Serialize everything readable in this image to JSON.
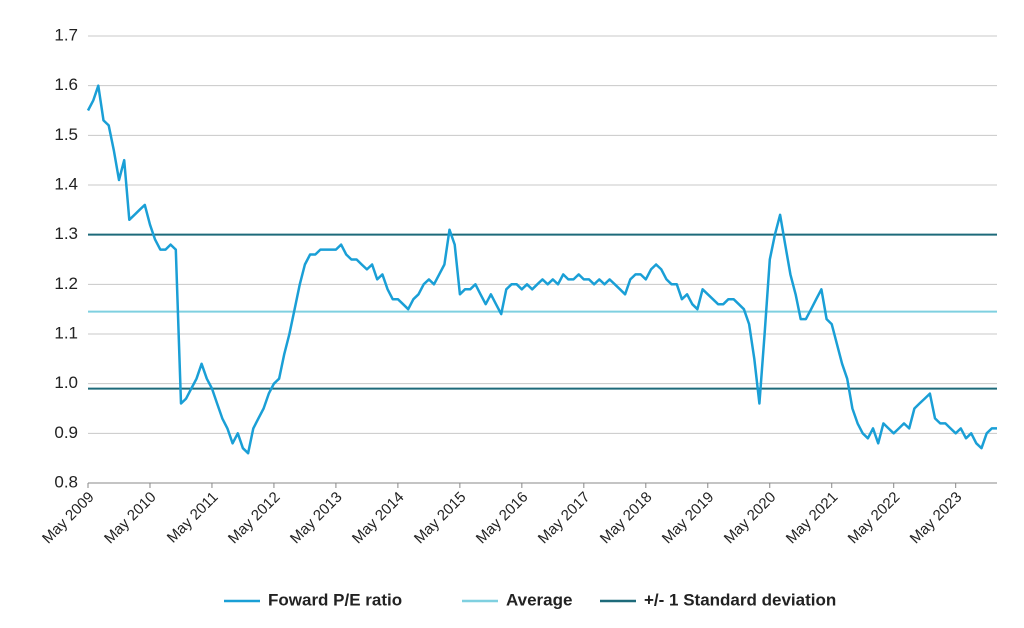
{
  "chart_data": {
    "type": "line",
    "x": [
      "2009-05",
      "2009-06",
      "2009-07",
      "2009-08",
      "2009-09",
      "2009-10",
      "2009-11",
      "2009-12",
      "2010-01",
      "2010-02",
      "2010-03",
      "2010-04",
      "2010-05",
      "2010-06",
      "2010-07",
      "2010-08",
      "2010-09",
      "2010-10",
      "2010-11",
      "2010-12",
      "2011-01",
      "2011-02",
      "2011-03",
      "2011-04",
      "2011-05",
      "2011-06",
      "2011-07",
      "2011-08",
      "2011-09",
      "2011-10",
      "2011-11",
      "2011-12",
      "2012-01",
      "2012-02",
      "2012-03",
      "2012-04",
      "2012-05",
      "2012-06",
      "2012-07",
      "2012-08",
      "2012-09",
      "2012-10",
      "2012-11",
      "2012-12",
      "2013-01",
      "2013-02",
      "2013-03",
      "2013-04",
      "2013-05",
      "2013-06",
      "2013-07",
      "2013-08",
      "2013-09",
      "2013-10",
      "2013-11",
      "2013-12",
      "2014-01",
      "2014-02",
      "2014-03",
      "2014-04",
      "2014-05",
      "2014-06",
      "2014-07",
      "2014-08",
      "2014-09",
      "2014-10",
      "2014-11",
      "2014-12",
      "2015-01",
      "2015-02",
      "2015-03",
      "2015-04",
      "2015-05",
      "2015-06",
      "2015-07",
      "2015-08",
      "2015-09",
      "2015-10",
      "2015-11",
      "2015-12",
      "2016-01",
      "2016-02",
      "2016-03",
      "2016-04",
      "2016-05",
      "2016-06",
      "2016-07",
      "2016-08",
      "2016-09",
      "2016-10",
      "2016-11",
      "2016-12",
      "2017-01",
      "2017-02",
      "2017-03",
      "2017-04",
      "2017-05",
      "2017-06",
      "2017-07",
      "2017-08",
      "2017-09",
      "2017-10",
      "2017-11",
      "2017-12",
      "2018-01",
      "2018-02",
      "2018-03",
      "2018-04",
      "2018-05",
      "2018-06",
      "2018-07",
      "2018-08",
      "2018-09",
      "2018-10",
      "2018-11",
      "2018-12",
      "2019-01",
      "2019-02",
      "2019-03",
      "2019-04",
      "2019-05",
      "2019-06",
      "2019-07",
      "2019-08",
      "2019-09",
      "2019-10",
      "2019-11",
      "2019-12",
      "2020-01",
      "2020-02",
      "2020-03",
      "2020-04",
      "2020-05",
      "2020-06",
      "2020-07",
      "2020-08",
      "2020-09",
      "2020-10",
      "2020-11",
      "2020-12",
      "2021-01",
      "2021-02",
      "2021-03",
      "2021-04",
      "2021-05",
      "2021-06",
      "2021-07",
      "2021-08",
      "2021-09",
      "2021-10",
      "2021-11",
      "2021-12",
      "2022-01",
      "2022-02",
      "2022-03",
      "2022-04",
      "2022-05",
      "2022-06",
      "2022-07",
      "2022-08",
      "2022-09",
      "2022-10",
      "2022-11",
      "2022-12",
      "2023-01",
      "2023-02",
      "2023-03",
      "2023-04",
      "2023-05",
      "2023-06",
      "2023-07",
      "2023-08",
      "2023-09",
      "2023-10",
      "2023-11",
      "2023-12",
      "2024-01"
    ],
    "series": [
      {
        "name": "Foward P/E ratio",
        "color": "#1a9fd6",
        "values": [
          1.55,
          1.57,
          1.6,
          1.53,
          1.52,
          1.47,
          1.41,
          1.45,
          1.33,
          1.34,
          1.35,
          1.36,
          1.32,
          1.29,
          1.27,
          1.27,
          1.28,
          1.27,
          0.96,
          0.97,
          0.99,
          1.01,
          1.04,
          1.01,
          0.99,
          0.96,
          0.93,
          0.91,
          0.88,
          0.9,
          0.87,
          0.86,
          0.91,
          0.93,
          0.95,
          0.98,
          1.0,
          1.01,
          1.06,
          1.1,
          1.15,
          1.2,
          1.24,
          1.26,
          1.26,
          1.27,
          1.27,
          1.27,
          1.27,
          1.28,
          1.26,
          1.25,
          1.25,
          1.24,
          1.23,
          1.24,
          1.21,
          1.22,
          1.19,
          1.17,
          1.17,
          1.16,
          1.15,
          1.17,
          1.18,
          1.2,
          1.21,
          1.2,
          1.22,
          1.24,
          1.31,
          1.28,
          1.18,
          1.19,
          1.19,
          1.2,
          1.18,
          1.16,
          1.18,
          1.16,
          1.14,
          1.19,
          1.2,
          1.2,
          1.19,
          1.2,
          1.19,
          1.2,
          1.21,
          1.2,
          1.21,
          1.2,
          1.22,
          1.21,
          1.21,
          1.22,
          1.21,
          1.21,
          1.2,
          1.21,
          1.2,
          1.21,
          1.2,
          1.19,
          1.18,
          1.21,
          1.22,
          1.22,
          1.21,
          1.23,
          1.24,
          1.23,
          1.21,
          1.2,
          1.2,
          1.17,
          1.18,
          1.16,
          1.15,
          1.19,
          1.18,
          1.17,
          1.16,
          1.16,
          1.17,
          1.17,
          1.16,
          1.15,
          1.12,
          1.05,
          0.96,
          1.1,
          1.25,
          1.3,
          1.34,
          1.28,
          1.22,
          1.18,
          1.13,
          1.13,
          1.15,
          1.17,
          1.19,
          1.13,
          1.12,
          1.08,
          1.04,
          1.01,
          0.95,
          0.92,
          0.9,
          0.89,
          0.91,
          0.88,
          0.92,
          0.91,
          0.9,
          0.91,
          0.92,
          0.91,
          0.95,
          0.96,
          0.97,
          0.98,
          0.93,
          0.92,
          0.92,
          0.91,
          0.9,
          0.91,
          0.89,
          0.9,
          0.88,
          0.87,
          0.9,
          0.91,
          0.91
        ]
      }
    ],
    "reference_lines": [
      {
        "name": "Average",
        "color": "#7fd0e0",
        "values": [
          1.145
        ]
      },
      {
        "name": "+/- 1 Standard deviation",
        "color": "#1d6a7a",
        "values": [
          1.3,
          0.99
        ]
      }
    ],
    "xlim": [
      "2009-05",
      "2024-01"
    ],
    "xticks": [
      {
        "value": "2009-05",
        "label": "May 2009"
      },
      {
        "value": "2010-05",
        "label": "May 2010"
      },
      {
        "value": "2011-05",
        "label": "May 2011"
      },
      {
        "value": "2012-05",
        "label": "May 2012"
      },
      {
        "value": "2013-05",
        "label": "May 2013"
      },
      {
        "value": "2014-05",
        "label": "May 2014"
      },
      {
        "value": "2015-05",
        "label": "May 2015"
      },
      {
        "value": "2016-05",
        "label": "May 2016"
      },
      {
        "value": "2017-05",
        "label": "May 2017"
      },
      {
        "value": "2018-05",
        "label": "May 2018"
      },
      {
        "value": "2019-05",
        "label": "May 2019"
      },
      {
        "value": "2020-05",
        "label": "May 2020"
      },
      {
        "value": "2021-05",
        "label": "May 2021"
      },
      {
        "value": "2022-05",
        "label": "May 2022"
      },
      {
        "value": "2023-05",
        "label": "May 2023"
      }
    ],
    "ylim": [
      0.8,
      1.7
    ],
    "yticks": [
      0.8,
      0.9,
      {
        "value": 1,
        "label": "1.0"
      },
      1.1,
      1.2,
      1.3,
      1.4,
      1.5,
      1.6,
      1.7
    ],
    "grid": true,
    "legend": "bottom"
  }
}
